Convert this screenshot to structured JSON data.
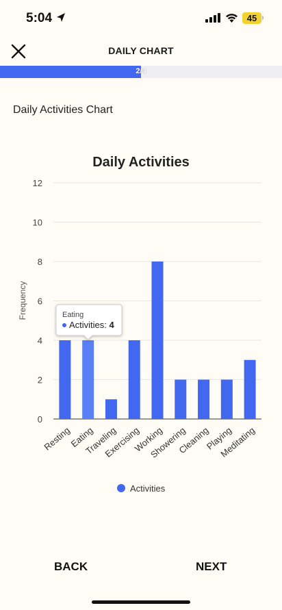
{
  "status_bar": {
    "time": "5:04",
    "battery": "45"
  },
  "header": {
    "title": "DAILY CHART",
    "close_icon": "close-icon"
  },
  "progress": {
    "label": "2/4",
    "fraction": 0.5
  },
  "section_heading": "Daily Activities Chart",
  "chart_data": {
    "type": "bar",
    "title": "Daily Activities",
    "ylabel": "Frequency",
    "xlabel": "",
    "ylim": [
      0,
      12
    ],
    "yticks": [
      0,
      2,
      4,
      6,
      8,
      10,
      12
    ],
    "grid": true,
    "legend_position": "bottom",
    "categories": [
      "Resting",
      "Eating",
      "Traveling",
      "Exercising",
      "Working",
      "Showering",
      "Cleaning",
      "Playing",
      "Meditating"
    ],
    "series": [
      {
        "name": "Activities",
        "values": [
          4,
          4,
          1,
          4,
          8,
          2,
          2,
          2,
          3
        ],
        "color": "#4368f0"
      }
    ],
    "tooltip": {
      "category": "Eating",
      "series": "Activities",
      "value": "4",
      "value_prefix": "Activities: "
    }
  },
  "footer": {
    "back_label": "BACK",
    "next_label": "NEXT"
  },
  "colors": {
    "accent": "#4368f0",
    "background": "#fefcf4",
    "battery": "#f2d230"
  }
}
